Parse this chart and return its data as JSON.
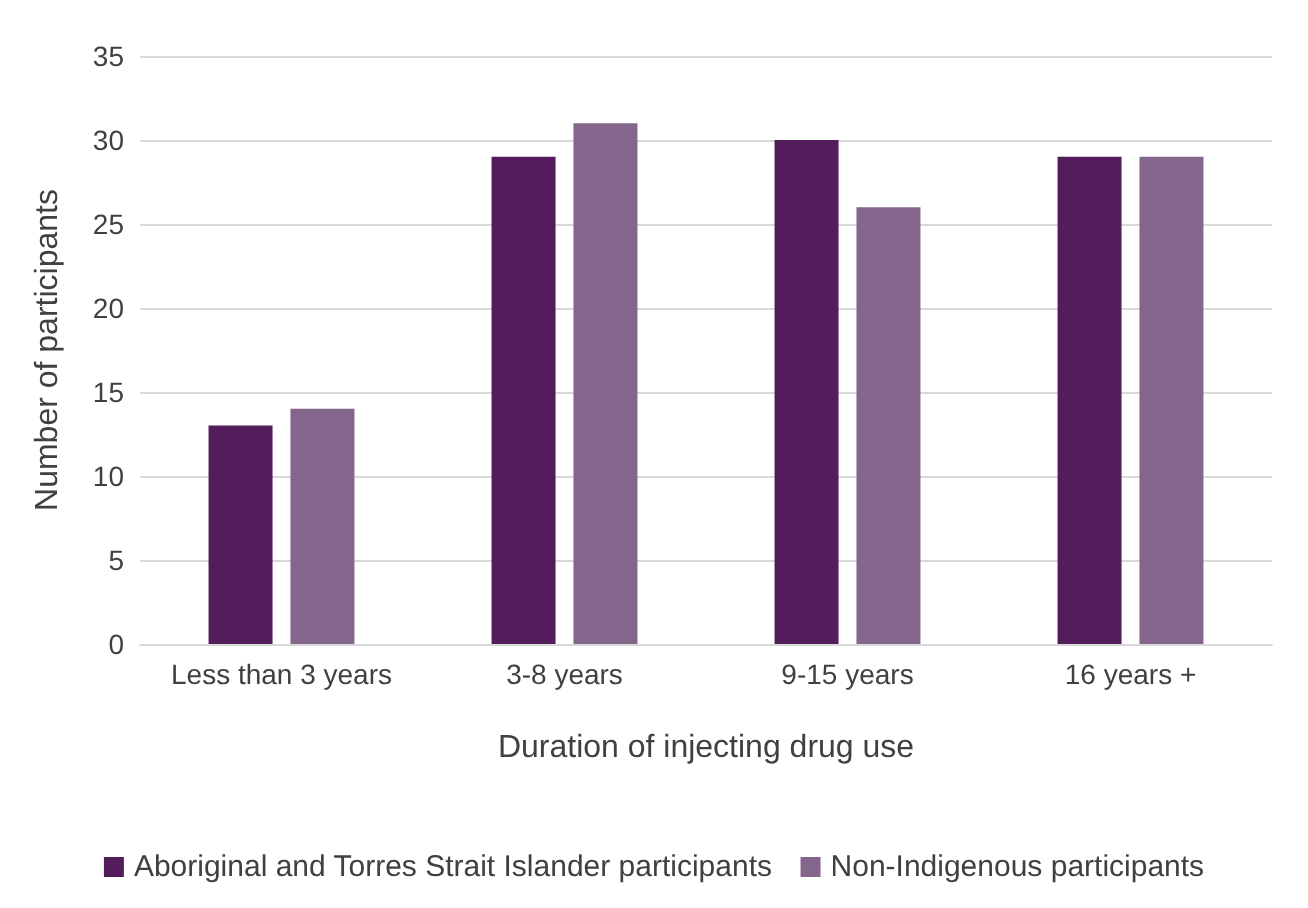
{
  "chart_data": {
    "type": "bar",
    "xlabel": "Duration of injecting drug use",
    "ylabel": "Number of participants",
    "categories": [
      "Less than 3 years",
      "3-8 years",
      "9-15 years",
      "16 years +"
    ],
    "series": [
      {
        "name": "Aboriginal and Torres Strait Islander participants",
        "color": "#521d5a",
        "values": [
          13,
          29,
          30,
          29
        ]
      },
      {
        "name": "Non-Indigenous participants",
        "color": "#84668d",
        "values": [
          14,
          31,
          26,
          29
        ]
      }
    ],
    "ylim": [
      0,
      35
    ],
    "yticks": [
      0,
      5,
      10,
      15,
      20,
      25,
      30,
      35
    ],
    "grid": "y",
    "legend": "bottom"
  }
}
